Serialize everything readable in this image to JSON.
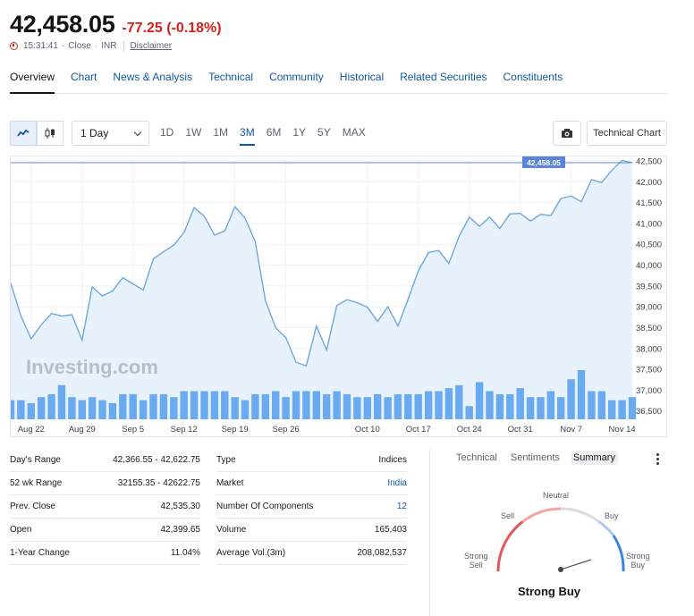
{
  "header": {
    "price": "42,458.05",
    "change": "-77.25",
    "change_pct": "(-0.18%)",
    "time": "15:31:41",
    "status": "Close",
    "currency": "INR",
    "disclaimer": "Disclaimer",
    "change_color": "#d91e18"
  },
  "tabs": [
    {
      "label": "Overview",
      "active": true
    },
    {
      "label": "Chart"
    },
    {
      "label": "News & Analysis"
    },
    {
      "label": "Technical"
    },
    {
      "label": "Community"
    },
    {
      "label": "Historical"
    },
    {
      "label": "Related Securities"
    },
    {
      "label": "Constituents"
    }
  ],
  "toolbar": {
    "interval": "1 Day",
    "ranges": [
      "1D",
      "1W",
      "1M",
      "3M",
      "6M",
      "1Y",
      "5Y",
      "MAX"
    ],
    "active_range": "3M",
    "technical_chart": "Technical Chart",
    "line_icon": "line-chart-icon",
    "candle_icon": "candlestick-icon",
    "camera_icon": "camera-icon"
  },
  "chart_data": {
    "type": "area",
    "current_label": "42,458.05",
    "watermark": "Investing.com",
    "y_ticks": [
      "42,500",
      "42,000",
      "41,500",
      "41,000",
      "40,500",
      "40,000",
      "39,500",
      "39,000",
      "38,500",
      "38,000",
      "37,500",
      "37,000",
      "36,500"
    ],
    "ylim": [
      36300,
      42500
    ],
    "x_ticks": [
      "Aug 22",
      "Aug 29",
      "Sep 5",
      "Sep 12",
      "Sep 19",
      "Sep 26",
      "Oct 10",
      "Oct 17",
      "Oct 24",
      "Oct 31",
      "Nov 7",
      "Nov 14"
    ],
    "x_tick_index": [
      2,
      7,
      12,
      17,
      22,
      27,
      35,
      40,
      45,
      50,
      55,
      60
    ],
    "prices": [
      39570,
      38780,
      38230,
      38570,
      38840,
      38780,
      38810,
      38200,
      39480,
      39260,
      39380,
      39700,
      39550,
      39400,
      40150,
      40320,
      40480,
      40780,
      41380,
      41170,
      40720,
      40820,
      41400,
      41130,
      40560,
      39150,
      38500,
      38260,
      37670,
      37580,
      38540,
      37960,
      39030,
      39170,
      39100,
      38990,
      38650,
      39000,
      38540,
      39180,
      39860,
      40300,
      40350,
      40040,
      40690,
      41150,
      40930,
      41150,
      40880,
      41230,
      41240,
      41060,
      41220,
      41190,
      41600,
      41660,
      41520,
      42050,
      41980,
      42280,
      42510,
      42458
    ],
    "volumes": [
      4,
      4,
      3,
      5,
      6,
      9,
      5,
      4,
      5,
      4,
      3,
      6,
      6,
      4,
      6,
      6,
      5,
      7,
      7,
      7,
      7,
      7,
      5,
      4,
      6,
      6,
      7,
      5,
      7,
      7,
      7,
      6,
      7,
      6,
      5,
      5,
      6,
      5,
      6,
      6,
      6,
      7,
      7,
      8,
      9,
      2,
      10,
      7,
      6,
      6,
      8,
      5,
      5,
      7,
      5,
      11,
      14,
      7,
      7,
      4,
      4,
      5
    ],
    "line_color": "#6fa8dc",
    "fill_color": "#e8f2fd",
    "volume_color": "#6aaaf0",
    "label_bg": "#5b83d9"
  },
  "stats": {
    "left": [
      {
        "label": "Day's Range",
        "value": "42,366.55 - 42,622.75"
      },
      {
        "label": "52 wk Range",
        "value": "32155.35 - 42622.75"
      },
      {
        "label": "Prev. Close",
        "value": "42,535.30"
      },
      {
        "label": "Open",
        "value": "42,399.65"
      },
      {
        "label": "1-Year Change",
        "value": "11.04%"
      }
    ],
    "right": [
      {
        "label": "Type",
        "value": "Indices"
      },
      {
        "label": "Market",
        "value": "India",
        "link": true
      },
      {
        "label": "Number Of Components",
        "value": "12",
        "link": true
      },
      {
        "label": "Volume",
        "value": "165,403"
      },
      {
        "label": "Average Vol.(3m)",
        "value": "208,082,537"
      }
    ]
  },
  "panel": {
    "tabs": [
      "Technical",
      "Sentiments",
      "Summary"
    ],
    "active_tab": "Summary",
    "gauge_labels": {
      "neutral": "Neutral",
      "sell": "Sell",
      "buy": "Buy",
      "strong_sell_1": "Strong",
      "strong_sell_2": "Sell",
      "strong_buy_1": "Strong",
      "strong_buy_2": "Buy"
    },
    "result": "Strong Buy",
    "sell_color": "#e05a5a",
    "buy_color": "#3b82e0"
  }
}
